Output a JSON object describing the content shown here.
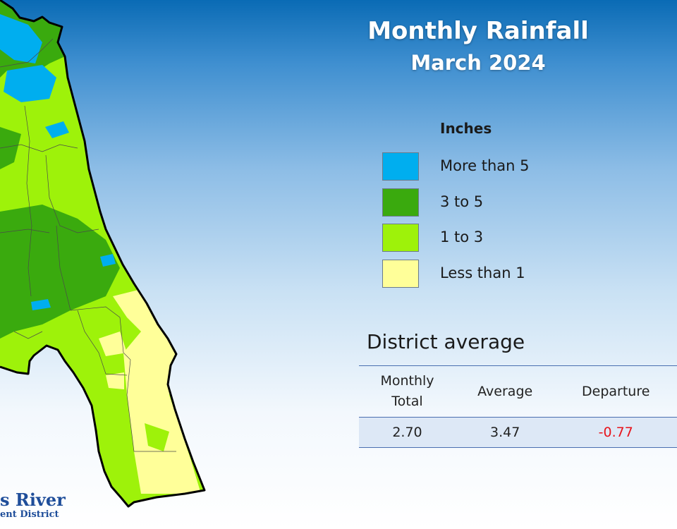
{
  "title": "Monthly Rainfall",
  "subtitle": "March 2024",
  "legend": {
    "heading": "Inches",
    "items": [
      {
        "label": "More than 5",
        "color": "#00aeef"
      },
      {
        "label": "3 to 5",
        "color": "#3aaa0e"
      },
      {
        "label": "1 to 3",
        "color": "#9ef20a"
      },
      {
        "label": "Less than 1",
        "color": "#ffff99"
      }
    ]
  },
  "district": {
    "heading": "District average",
    "columns": [
      "Monthly\nTotal",
      "Average",
      "Departure"
    ],
    "values": [
      "2.70",
      "3.47",
      "-0.77"
    ],
    "departure_color": "#e8141c"
  },
  "logo": {
    "line1": "s River",
    "line2": "ent District"
  }
}
